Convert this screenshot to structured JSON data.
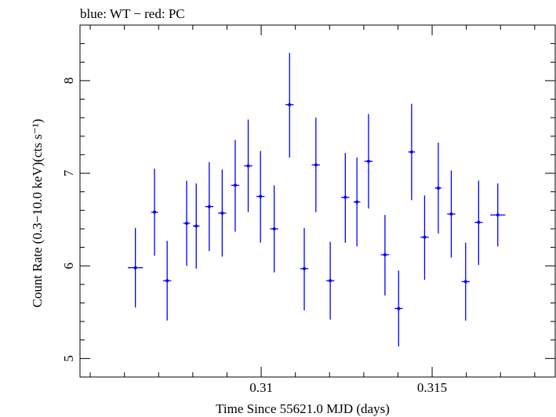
{
  "chart_data": {
    "type": "scatter",
    "title": "blue: WT − red: PC",
    "xlabel": "Time Since 55621.0 MJD (days)",
    "ylabel": "Count Rate (0.3−10.0 keV)(cts s⁻¹)",
    "xlim": [
      0.3047,
      0.3186
    ],
    "ylim": [
      4.8,
      8.6
    ],
    "x_ticks": [
      0.31,
      0.315
    ],
    "x_tick_labels": [
      "0.31",
      "0.315"
    ],
    "y_ticks": [
      5,
      6,
      7,
      8
    ],
    "y_tick_labels": [
      "5",
      "6",
      "7",
      "8"
    ],
    "grid": false,
    "series_color": "#0000ff",
    "series": [
      {
        "points": [
          {
            "x": 0.30632,
            "xerr": 0.00022,
            "y": 5.98,
            "ylo": 5.55,
            "yhi": 6.41
          },
          {
            "x": 0.30688,
            "xerr": 0.0001,
            "y": 6.58,
            "ylo": 6.11,
            "yhi": 7.05
          },
          {
            "x": 0.30725,
            "xerr": 0.00012,
            "y": 5.84,
            "ylo": 5.41,
            "yhi": 6.27
          },
          {
            "x": 0.30782,
            "xerr": 0.0001,
            "y": 6.46,
            "ylo": 6.0,
            "yhi": 6.92
          },
          {
            "x": 0.3081,
            "xerr": 0.0001,
            "y": 6.43,
            "ylo": 5.97,
            "yhi": 6.89
          },
          {
            "x": 0.30848,
            "xerr": 0.00012,
            "y": 6.64,
            "ylo": 6.16,
            "yhi": 7.12
          },
          {
            "x": 0.30886,
            "xerr": 0.00012,
            "y": 6.57,
            "ylo": 6.1,
            "yhi": 7.04
          },
          {
            "x": 0.30924,
            "xerr": 0.00012,
            "y": 6.87,
            "ylo": 6.37,
            "yhi": 7.36
          },
          {
            "x": 0.30962,
            "xerr": 0.00012,
            "y": 7.08,
            "ylo": 6.58,
            "yhi": 7.58
          },
          {
            "x": 0.30998,
            "xerr": 0.00012,
            "y": 6.75,
            "ylo": 6.25,
            "yhi": 7.24
          },
          {
            "x": 0.31038,
            "xerr": 0.00012,
            "y": 6.4,
            "ylo": 5.93,
            "yhi": 6.87
          },
          {
            "x": 0.31083,
            "xerr": 0.00012,
            "y": 7.74,
            "ylo": 7.17,
            "yhi": 8.3
          },
          {
            "x": 0.31126,
            "xerr": 0.00012,
            "y": 5.97,
            "ylo": 5.52,
            "yhi": 6.41
          },
          {
            "x": 0.3116,
            "xerr": 0.00012,
            "y": 7.09,
            "ylo": 6.58,
            "yhi": 7.6
          },
          {
            "x": 0.31202,
            "xerr": 0.00012,
            "y": 5.84,
            "ylo": 5.42,
            "yhi": 6.26
          },
          {
            "x": 0.31246,
            "xerr": 0.00012,
            "y": 6.74,
            "ylo": 6.25,
            "yhi": 7.22
          },
          {
            "x": 0.3128,
            "xerr": 0.0001,
            "y": 6.69,
            "ylo": 6.21,
            "yhi": 7.17
          },
          {
            "x": 0.31314,
            "xerr": 0.00012,
            "y": 7.13,
            "ylo": 6.62,
            "yhi": 7.64
          },
          {
            "x": 0.31362,
            "xerr": 0.00012,
            "y": 6.12,
            "ylo": 5.68,
            "yhi": 6.55
          },
          {
            "x": 0.31402,
            "xerr": 0.00012,
            "y": 5.54,
            "ylo": 5.13,
            "yhi": 5.95
          },
          {
            "x": 0.3144,
            "xerr": 0.0001,
            "y": 7.23,
            "ylo": 6.71,
            "yhi": 7.75
          },
          {
            "x": 0.31478,
            "xerr": 0.00012,
            "y": 6.31,
            "ylo": 5.85,
            "yhi": 6.76
          },
          {
            "x": 0.31518,
            "xerr": 0.0001,
            "y": 6.84,
            "ylo": 6.35,
            "yhi": 7.33
          },
          {
            "x": 0.31556,
            "xerr": 0.00012,
            "y": 6.56,
            "ylo": 6.09,
            "yhi": 7.03
          },
          {
            "x": 0.31598,
            "xerr": 0.00012,
            "y": 5.83,
            "ylo": 5.41,
            "yhi": 6.25
          },
          {
            "x": 0.31636,
            "xerr": 0.00012,
            "y": 6.47,
            "ylo": 6.01,
            "yhi": 6.92
          },
          {
            "x": 0.31692,
            "xerr": 0.00022,
            "y": 6.55,
            "ylo": 6.21,
            "yhi": 6.89
          }
        ]
      }
    ]
  }
}
